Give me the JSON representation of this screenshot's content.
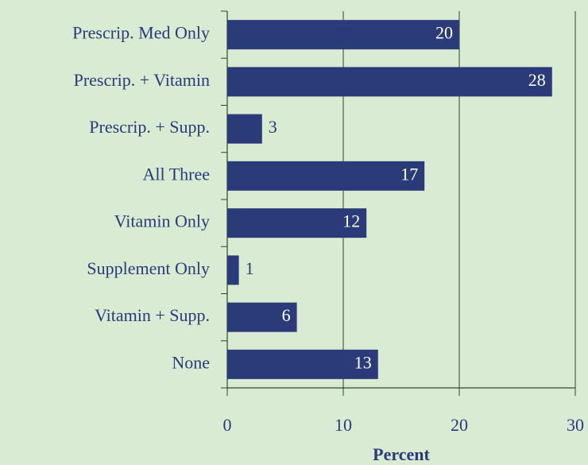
{
  "chart_data": {
    "type": "bar",
    "orientation": "horizontal",
    "categories": [
      "Prescrip. Med Only",
      "Prescrip. + Vitamin",
      "Prescrip. + Supp.",
      "All Three",
      "Vitamin Only",
      "Supplement Only",
      "Vitamin + Supp.",
      "None"
    ],
    "values": [
      20,
      28,
      3,
      17,
      12,
      1,
      6,
      13
    ],
    "color": "#2b3a78",
    "x_label": "Percent",
    "xlim": [
      0,
      30
    ],
    "xticks": [
      0,
      10,
      20,
      30
    ],
    "grid": true
  }
}
